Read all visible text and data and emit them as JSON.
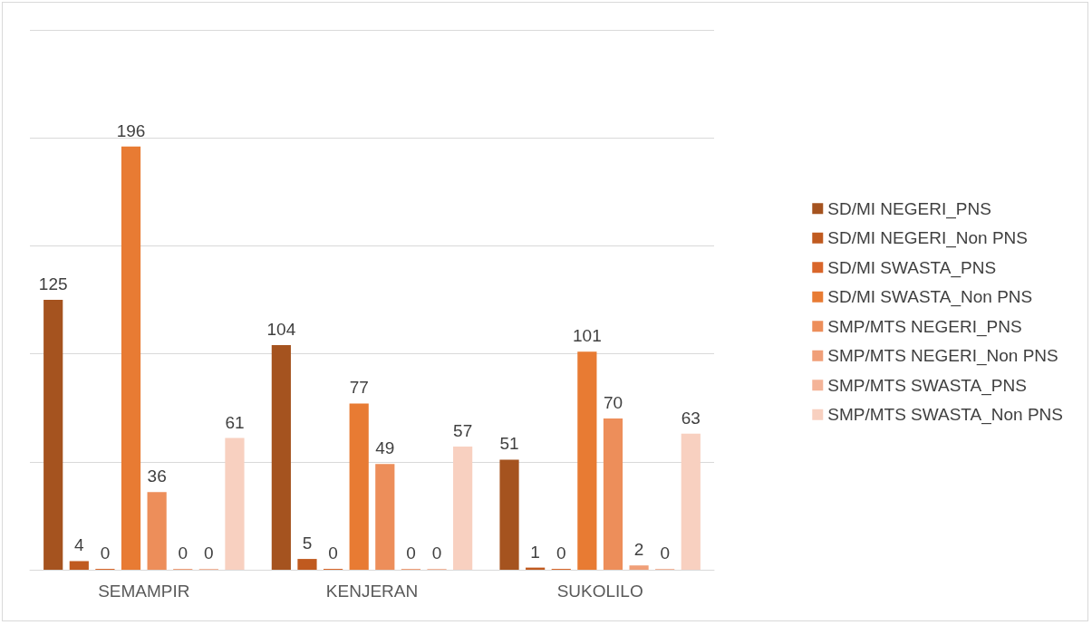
{
  "chart_data": {
    "type": "bar",
    "categories": [
      "SEMAMPIR",
      "KENJERAN",
      "SUKOLILO"
    ],
    "series": [
      {
        "name": "SD/MI NEGERI_PNS",
        "color": "#a5531f",
        "values": [
          125,
          104,
          51
        ]
      },
      {
        "name": "SD/MI NEGERI_Non PNS",
        "color": "#c05a1f",
        "values": [
          4,
          5,
          1
        ]
      },
      {
        "name": "SD/MI SWASTA_PNS",
        "color": "#d9662a",
        "values": [
          0,
          0,
          0
        ]
      },
      {
        "name": "SD/MI SWASTA_Non PNS",
        "color": "#e87b33",
        "values": [
          196,
          77,
          101
        ]
      },
      {
        "name": "SMP/MTS NEGERI_PNS",
        "color": "#ed8e5a",
        "values": [
          36,
          49,
          70
        ]
      },
      {
        "name": "SMP/MTS NEGERI_Non PNS",
        "color": "#f09f78",
        "values": [
          0,
          0,
          2
        ]
      },
      {
        "name": "SMP/MTS SWASTA_PNS",
        "color": "#f4b498",
        "values": [
          0,
          0,
          0
        ]
      },
      {
        "name": "SMP/MTS SWASTA_Non PNS",
        "color": "#f8d0c0",
        "values": [
          61,
          57,
          63
        ]
      }
    ],
    "ylim": [
      0,
      250
    ],
    "yticks": [
      {
        "value": 0,
        "label": null
      },
      {
        "value": 50,
        "label": null
      },
      {
        "value": 100,
        "label": null
      },
      {
        "value": 150,
        "label": null
      },
      {
        "value": 200,
        "label": null
      },
      {
        "value": 250,
        "label": null
      }
    ],
    "tick_labels": "x",
    "grid": "y",
    "legend": "right",
    "data_labels": true
  }
}
